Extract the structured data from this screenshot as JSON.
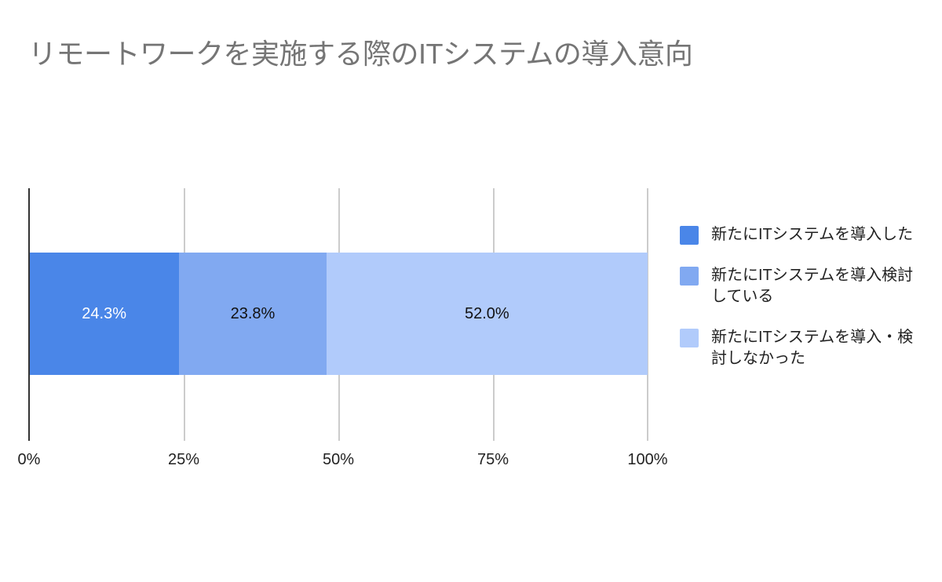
{
  "title": "リモートワークを実施する際のITシステムの導入意向",
  "axis": {
    "ticks": [
      "0%",
      "25%",
      "50%",
      "75%",
      "100%"
    ]
  },
  "bar": {
    "segments": [
      {
        "label": "24.3%",
        "value": 24.3,
        "color": "#4a86e8",
        "text_color": "#ffffff"
      },
      {
        "label": "23.8%",
        "value": 23.8,
        "color": "#81a9f1",
        "text_color": "#111111"
      },
      {
        "label": "52.0%",
        "value": 52.0,
        "color": "#b1cbfb",
        "text_color": "#111111"
      }
    ]
  },
  "legend": {
    "items": [
      {
        "label": "新たにITシステムを導入した",
        "color": "#4a86e8"
      },
      {
        "label": "新たにITシステムを導入検討している",
        "color": "#81a9f1"
      },
      {
        "label": "新たにITシステムを導入・検討しなかった",
        "color": "#b1cbfb"
      }
    ]
  },
  "chart_data": {
    "type": "bar",
    "orientation": "horizontal",
    "stacked": "percent",
    "title": "リモートワークを実施する際のITシステムの導入意向",
    "categories": [
      ""
    ],
    "series": [
      {
        "name": "新たにITシステムを導入した",
        "values": [
          24.3
        ],
        "color": "#4a86e8"
      },
      {
        "name": "新たにITシステムを導入検討している",
        "values": [
          23.8
        ],
        "color": "#81a9f1"
      },
      {
        "name": "新たにITシステムを導入・検討しなかった",
        "values": [
          52.0
        ],
        "color": "#b1cbfb"
      }
    ],
    "xlabel": "",
    "ylabel": "",
    "xlim": [
      0,
      100
    ],
    "xticks": [
      "0%",
      "25%",
      "50%",
      "75%",
      "100%"
    ],
    "data_labels": [
      "24.3%",
      "23.8%",
      "52.0%"
    ],
    "grid": true,
    "legend_position": "right"
  }
}
